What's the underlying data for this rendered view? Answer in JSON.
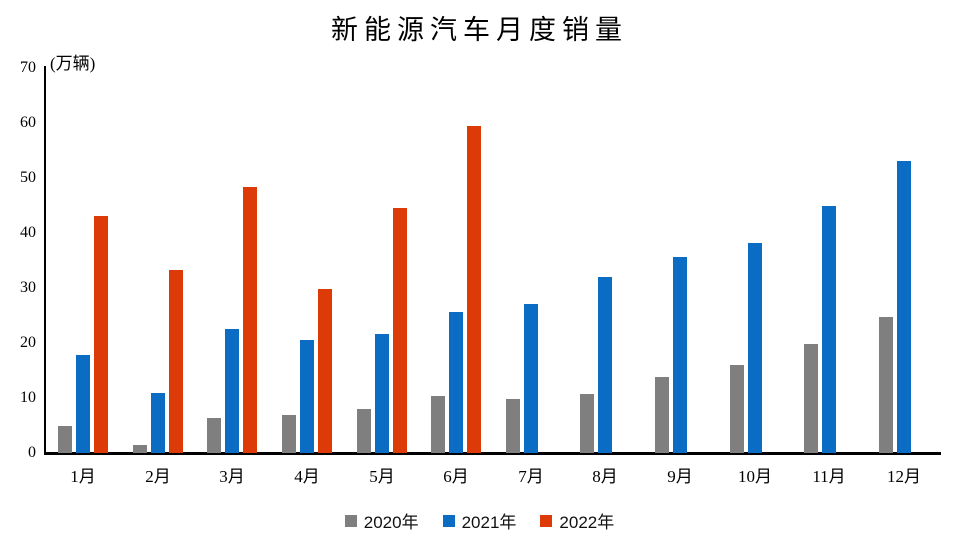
{
  "chart_data": {
    "type": "bar",
    "title": "新能源汽车月度销量",
    "unit_label": "(万辆)",
    "categories": [
      "1月",
      "2月",
      "3月",
      "4月",
      "5月",
      "6月",
      "7月",
      "8月",
      "9月",
      "10月",
      "11月",
      "12月"
    ],
    "series": [
      {
        "name": "2020年",
        "color": "#7F7F7F",
        "values": [
          5.0,
          1.4,
          6.4,
          7.0,
          8.1,
          10.3,
          9.8,
          10.8,
          13.9,
          16.0,
          19.9,
          24.8
        ]
      },
      {
        "name": "2021年",
        "color": "#0A6CC2",
        "values": [
          17.9,
          11.0,
          22.6,
          20.6,
          21.7,
          25.6,
          27.1,
          32.1,
          35.7,
          38.3,
          45.0,
          53.1
        ]
      },
      {
        "name": "2022年",
        "color": "#DC3A06",
        "values": [
          43.1,
          33.4,
          48.4,
          29.9,
          44.7,
          59.6,
          null,
          null,
          null,
          null,
          null,
          null
        ]
      }
    ],
    "y_ticks": [
      0,
      10,
      20,
      30,
      40,
      50,
      60,
      70
    ],
    "ylim": [
      0,
      70
    ],
    "xlabel": "",
    "ylabel": "",
    "grid": false,
    "legend_position": "bottom"
  }
}
